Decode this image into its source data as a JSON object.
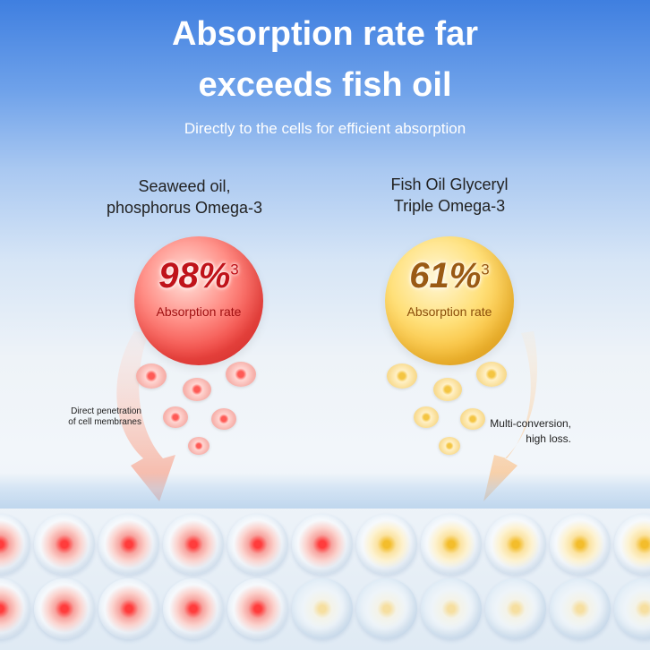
{
  "header": {
    "title_line1": "Absorption rate far",
    "title_line2": "exceeds fish oil",
    "subtitle": "Directly to the cells for efficient absorption"
  },
  "left": {
    "label_line1": "Seaweed oil,",
    "label_line2": "phosphorus Omega-3",
    "percent": "98%",
    "footnote": "3",
    "rate_label": "Absorption rate",
    "note_line1": "Direct penetration",
    "note_line2": "of cell membranes"
  },
  "right": {
    "label_line1": "Fish Oil Glyceryl",
    "label_line2": "Triple Omega-3",
    "percent": "61%",
    "footnote": "3",
    "rate_label": "Absorption rate",
    "note_line1": "Multi-conversion,",
    "note_line2": "high loss."
  },
  "colors": {
    "left_accent": "#e62e2c",
    "right_accent": "#f6b82e",
    "title_text": "#ffffff"
  }
}
